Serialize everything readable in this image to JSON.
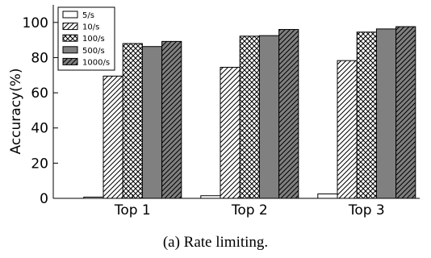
{
  "chart_data": {
    "type": "bar",
    "categories": [
      "Top 1",
      "Top 2",
      "Top 3"
    ],
    "series": [
      {
        "name": "5/s",
        "values": [
          0.7,
          1.5,
          2.5
        ],
        "pattern": "none"
      },
      {
        "name": "10/s",
        "values": [
          69.5,
          74.5,
          78.3
        ],
        "pattern": "diagonal"
      },
      {
        "name": "100/s",
        "values": [
          88,
          92.2,
          94.5
        ],
        "pattern": "crosshatch"
      },
      {
        "name": "500/s",
        "values": [
          86.3,
          92.5,
          96.3
        ],
        "pattern": "solid-gray"
      },
      {
        "name": "1000/s",
        "values": [
          89.2,
          96,
          97.6
        ],
        "pattern": "gray-diagonal"
      }
    ],
    "ylabel": "Accuracy(%)",
    "xlabel": "",
    "ylim": [
      0,
      110
    ],
    "yticks": [
      0,
      20,
      40,
      60,
      80,
      100
    ],
    "legend_position": "top-left",
    "grid": false
  },
  "caption": "(a) Rate limiting.",
  "colors": {
    "bar_edge": "#000000",
    "gray_fill": "#808080",
    "white_fill": "#ffffff"
  }
}
